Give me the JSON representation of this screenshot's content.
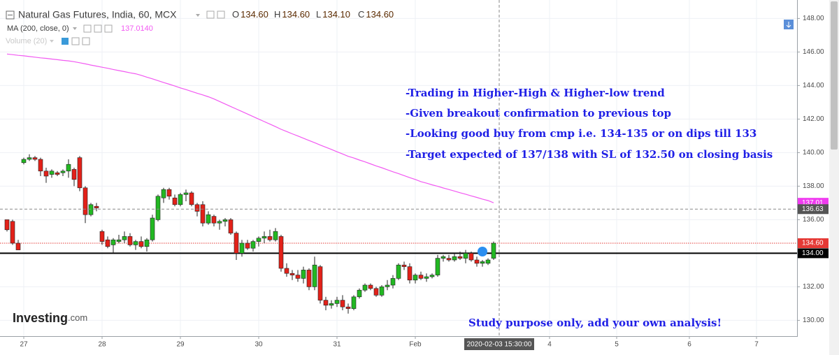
{
  "chart_data": {
    "type": "candlestick",
    "title": "Natural Gas Futures, India, 60, MCX",
    "ohlc_header": [
      {
        "name": "O",
        "value": {
          "value": 134.6,
          "label": "134.60"
        }
      },
      {
        "name": "H",
        "value": {
          "value": 134.6,
          "label": "134.60"
        }
      },
      {
        "name": "L",
        "value": {
          "value": 134.1,
          "label": "134.10"
        }
      },
      {
        "name": "C",
        "value": {
          "value": 134.6,
          "label": "134.60"
        }
      }
    ],
    "volume_label": "Volume (20)",
    "up_color": "#22b822",
    "down_color": "#e32119",
    "open": [
      136.0,
      135.9,
      134.6,
      139.4,
      139.6,
      139.7,
      139.6,
      138.9,
      138.7,
      138.8,
      138.8,
      138.9,
      139.0,
      139.7,
      137.9,
      136.3,
      136.8,
      135.3,
      134.8,
      134.5,
      134.7,
      134.8,
      135.0,
      134.5,
      134.7,
      134.4,
      134.8,
      136.0,
      137.3,
      137.8,
      137.3,
      136.9,
      137.5,
      137.6,
      136.9,
      136.9,
      135.8,
      136.2,
      135.8,
      135.9,
      136.0,
      135.2,
      134.0,
      134.6,
      134.3,
      134.7,
      134.9,
      135.0,
      134.8,
      135.0,
      133.1,
      132.8,
      132.7,
      132.5,
      133.0,
      132.0,
      133.2,
      131.2,
      130.9,
      131.0,
      131.2,
      130.8,
      130.7,
      131.4,
      131.8,
      132.1,
      131.9,
      131.5,
      132.0,
      132.1,
      132.5,
      133.3,
      133.2,
      132.4,
      132.7,
      132.5,
      132.6,
      132.7,
      133.7,
      133.7,
      133.6,
      133.8,
      133.7,
      134.0,
      133.6,
      133.4,
      133.4,
      133.7
    ],
    "high": [
      136.0,
      136.0,
      134.8,
      139.7,
      139.9,
      139.8,
      139.7,
      139.1,
      139.0,
      138.9,
      139.0,
      139.6,
      139.1,
      139.8,
      138.0,
      137.0,
      137.0,
      135.4,
      135.0,
      134.9,
      135.1,
      135.3,
      135.2,
      134.8,
      135.0,
      134.9,
      136.3,
      137.5,
      137.9,
      137.9,
      137.5,
      137.6,
      137.8,
      137.7,
      137.0,
      137.1,
      136.5,
      136.3,
      136.0,
      136.1,
      136.1,
      135.3,
      134.8,
      134.8,
      134.8,
      135.0,
      135.3,
      135.4,
      135.5,
      135.1,
      133.4,
      133.0,
      133.0,
      133.2,
      133.1,
      133.8,
      133.3,
      131.4,
      131.2,
      131.4,
      131.5,
      131.0,
      131.5,
      131.9,
      132.2,
      132.2,
      132.0,
      132.1,
      132.4,
      132.7,
      133.4,
      133.5,
      133.4,
      132.8,
      132.9,
      132.8,
      132.8,
      133.9,
      133.9,
      133.9,
      134.0,
      134.1,
      134.2,
      134.1,
      133.8,
      133.6,
      133.7,
      134.7
    ],
    "low": [
      135.3,
      134.5,
      134.2,
      139.3,
      139.5,
      139.5,
      138.6,
      138.2,
      138.5,
      138.6,
      138.6,
      138.5,
      138.0,
      137.7,
      135.8,
      136.2,
      136.5,
      134.5,
      134.3,
      134.0,
      134.6,
      134.6,
      134.4,
      134.2,
      134.3,
      134.1,
      134.7,
      135.9,
      137.0,
      137.2,
      136.8,
      136.8,
      137.1,
      136.8,
      136.2,
      135.6,
      135.7,
      135.6,
      135.4,
      135.6,
      135.1,
      133.6,
      133.8,
      134.2,
      134.1,
      134.4,
      134.6,
      134.7,
      134.7,
      132.9,
      132.6,
      132.4,
      132.3,
      132.2,
      131.8,
      131.8,
      131.0,
      130.6,
      130.7,
      130.8,
      130.6,
      130.4,
      130.6,
      131.3,
      131.7,
      131.8,
      131.4,
      131.4,
      131.8,
      131.9,
      132.4,
      133.0,
      132.2,
      132.2,
      132.4,
      132.3,
      132.5,
      132.6,
      133.5,
      133.5,
      133.5,
      133.6,
      133.4,
      133.5,
      133.2,
      133.2,
      133.3,
      133.6
    ],
    "close": [
      135.4,
      134.6,
      134.2,
      139.6,
      139.7,
      139.6,
      138.9,
      138.6,
      138.9,
      138.7,
      138.9,
      139.3,
      138.4,
      137.9,
      136.3,
      136.9,
      136.7,
      134.7,
      134.4,
      134.8,
      134.8,
      135.0,
      134.5,
      134.7,
      134.4,
      134.8,
      136.1,
      137.4,
      137.8,
      137.4,
      136.9,
      137.5,
      137.6,
      136.9,
      136.5,
      135.8,
      136.3,
      135.8,
      135.9,
      136.0,
      135.2,
      134.0,
      134.6,
      134.3,
      134.7,
      134.9,
      135.0,
      134.8,
      135.3,
      133.1,
      132.8,
      132.7,
      132.5,
      133.0,
      132.0,
      133.3,
      131.2,
      130.9,
      131.0,
      131.2,
      130.8,
      130.7,
      131.4,
      131.8,
      132.1,
      131.9,
      131.5,
      132.0,
      132.1,
      132.5,
      133.3,
      133.2,
      132.4,
      132.7,
      132.5,
      132.6,
      132.7,
      133.7,
      133.8,
      133.6,
      133.8,
      133.7,
      134.0,
      133.6,
      133.4,
      133.5,
      133.6,
      134.6
    ],
    "overlays": [
      {
        "name": "MA (200, close, 0)",
        "color": "#f25af2",
        "current": {
          "value": 137.014,
          "label": "137.0140"
        },
        "values": [
          145.88,
          145.84,
          145.8,
          145.77,
          145.73,
          145.69,
          145.65,
          145.62,
          145.58,
          145.54,
          145.5,
          145.47,
          145.42,
          145.36,
          145.29,
          145.22,
          145.16,
          145.09,
          145.03,
          144.96,
          144.89,
          144.83,
          144.76,
          144.7,
          144.61,
          144.5,
          144.4,
          144.29,
          144.18,
          144.08,
          143.97,
          143.86,
          143.76,
          143.65,
          143.54,
          143.44,
          143.33,
          143.2,
          143.05,
          142.9,
          142.75,
          142.6,
          142.45,
          142.3,
          142.15,
          142.0,
          141.85,
          141.7,
          141.55,
          141.39,
          141.26,
          141.12,
          140.99,
          140.86,
          140.72,
          140.59,
          140.45,
          140.32,
          140.19,
          140.05,
          139.92,
          139.78,
          139.68,
          139.56,
          139.45,
          139.33,
          139.21,
          139.1,
          138.98,
          138.86,
          138.75,
          138.63,
          138.51,
          138.4,
          138.27,
          138.18,
          138.08,
          137.99,
          137.89,
          137.8,
          137.71,
          137.61,
          137.52,
          137.42,
          137.33,
          137.23,
          137.14,
          137.01
        ]
      }
    ],
    "price_markers": [
      {
        "value": 137.01,
        "label": "137.01",
        "color": "#f03cf0",
        "style": "none"
      },
      {
        "value": 134.6,
        "label": "134.60",
        "color": "#e53935",
        "style": "dotted"
      },
      {
        "value": 134,
        "label": "134.00",
        "color": "#000000",
        "style": "solid"
      }
    ],
    "crosshair": {
      "x": {
        "value": 88,
        "label": "2020-02-03 15:30:00"
      },
      "y": {
        "value": 136.63,
        "label": "136.63"
      }
    },
    "xlim": [
      -1.25,
      141.25
    ],
    "xticks": [
      {
        "value": 3,
        "label": "27"
      },
      {
        "value": 17,
        "label": "28"
      },
      {
        "value": 31,
        "label": "29"
      },
      {
        "value": 45,
        "label": "30"
      },
      {
        "value": 59,
        "label": "31"
      },
      {
        "value": 73,
        "label": "Feb"
      },
      {
        "value": 97,
        "label": "4"
      },
      {
        "value": 109,
        "label": "5"
      },
      {
        "value": 122,
        "label": "6"
      },
      {
        "value": 134,
        "label": "7"
      }
    ],
    "ylim": [
      129.1,
      149.1
    ],
    "yticks": [
      {
        "value": 130,
        "label": "130.00"
      },
      {
        "value": 132,
        "label": "132.00"
      },
      {
        "value": 134,
        "label": "134.00"
      },
      {
        "value": 136,
        "label": "136.00"
      },
      {
        "value": 138,
        "label": "138.00"
      },
      {
        "value": 140,
        "label": "140.00"
      },
      {
        "value": 142,
        "label": "142.00"
      },
      {
        "value": 144,
        "label": "144.00"
      },
      {
        "value": 146,
        "label": "146.00"
      },
      {
        "value": 148,
        "label": "148.00"
      }
    ],
    "grid": true,
    "annotations": [
      "-Trading in Higher-High & Higher-low trend",
      "-Given breakout confirmation to previous top",
      "-Looking good buy from cmp i.e. 134-135 or on dips till 133",
      "-Target expected of 137/138 with SL of 132.50 on closing basis"
    ],
    "footnote": "Study purpose only, add your own analysis!",
    "logo": [
      "Investing",
      ".com"
    ]
  }
}
